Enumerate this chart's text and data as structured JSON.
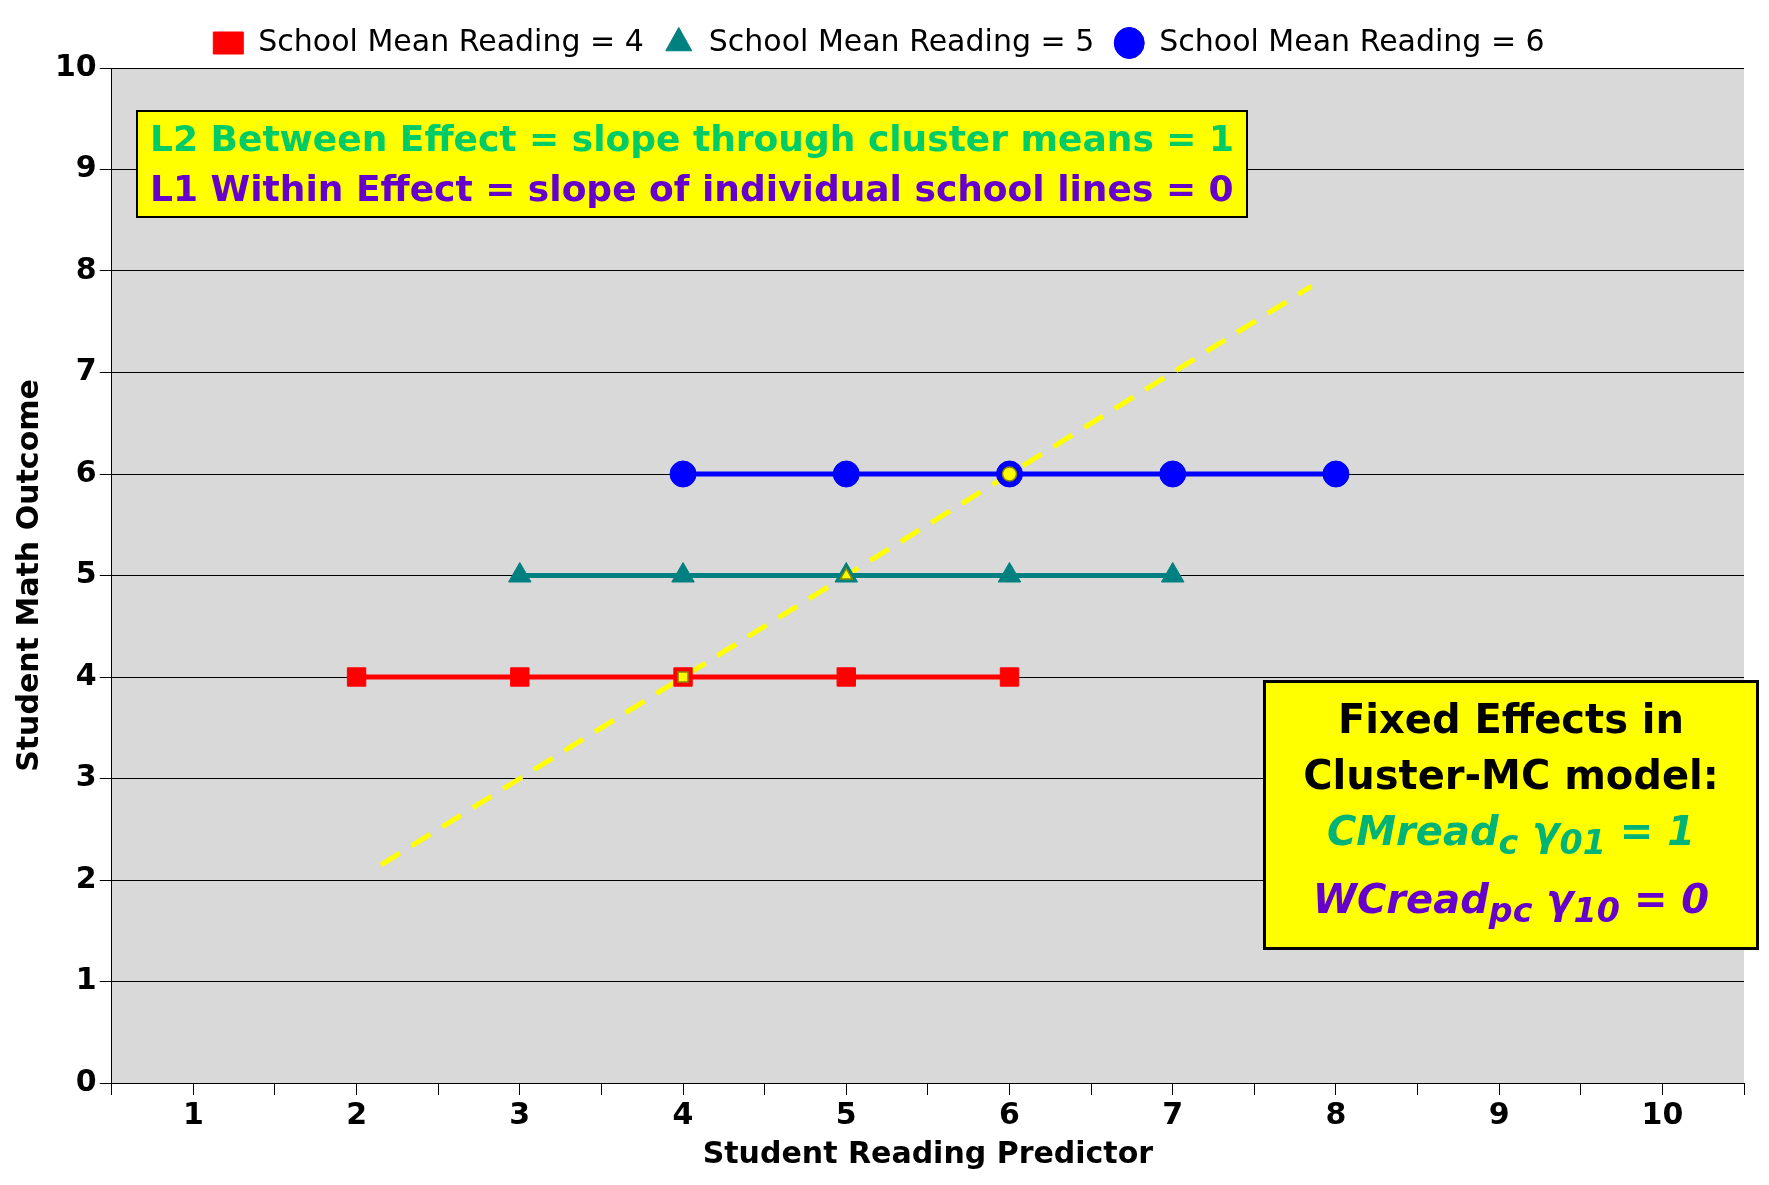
{
  "chart_data": {
    "type": "line",
    "xlabel": "Student Reading Predictor",
    "ylabel": "Student Math Outcome",
    "xlim": [
      0.5,
      10.5
    ],
    "xticks": [
      {
        "value": 0.5,
        "label": null
      },
      1,
      {
        "value": 1.5,
        "label": null
      },
      2,
      {
        "value": 2.5,
        "label": null
      },
      3,
      {
        "value": 3.5,
        "label": null
      },
      4,
      {
        "value": 4.5,
        "label": null
      },
      5,
      {
        "value": 5.5,
        "label": null
      },
      6,
      {
        "value": 6.5,
        "label": null
      },
      7,
      {
        "value": 7.5,
        "label": null
      },
      8,
      {
        "value": 8.5,
        "label": null
      },
      9,
      {
        "value": 9.5,
        "label": null
      },
      10,
      {
        "value": 10.5,
        "label": null
      }
    ],
    "ylim": [
      0,
      10
    ],
    "yticks": [
      0,
      1,
      2,
      3,
      4,
      5,
      6,
      7,
      8,
      9,
      10
    ],
    "grid": "y",
    "legend": "top",
    "series": [
      {
        "name": "School Mean Reading = 4",
        "color": "#ff0000",
        "marker": "square",
        "x": [
          2,
          3,
          4,
          5,
          6
        ],
        "values": [
          4,
          4,
          4,
          4,
          4
        ]
      },
      {
        "name": "School Mean Reading = 5",
        "color": "#008080",
        "marker": "triangle",
        "x": [
          3,
          4,
          5,
          6,
          7
        ],
        "values": [
          5,
          5,
          5,
          5,
          5
        ]
      },
      {
        "name": "School Mean Reading = 6",
        "color": "#0000ff",
        "marker": "circle",
        "x": [
          4,
          5,
          6,
          7,
          8
        ],
        "values": [
          6,
          6,
          6,
          6,
          6
        ]
      },
      {
        "type": "line",
        "color": "#ffff00",
        "line_style": "dashed",
        "marker": "none",
        "x": [
          2.15,
          7.85
        ],
        "values": [
          2.15,
          7.85
        ]
      },
      {
        "type": "scatter",
        "color": "#ffff00",
        "marker": "square",
        "x": [
          4
        ],
        "values": [
          4
        ]
      },
      {
        "type": "scatter",
        "color": "#ffff00",
        "marker": "triangle",
        "x": [
          5
        ],
        "values": [
          5
        ]
      },
      {
        "type": "scatter",
        "color": "#ffff00",
        "marker": "circle",
        "x": [
          6
        ],
        "values": [
          6
        ]
      }
    ],
    "annotations": [
      "L2 Between Effect = slope through cluster means = 1",
      "L1 Within Effect = slope of individual school lines = 0",
      "Fixed Effects in Cluster-MC model:",
      "CMread$_{c}$ γ$_{01}$ = 1",
      "WCread$_{pc}$ γ$_{10}$ = 0"
    ]
  }
}
